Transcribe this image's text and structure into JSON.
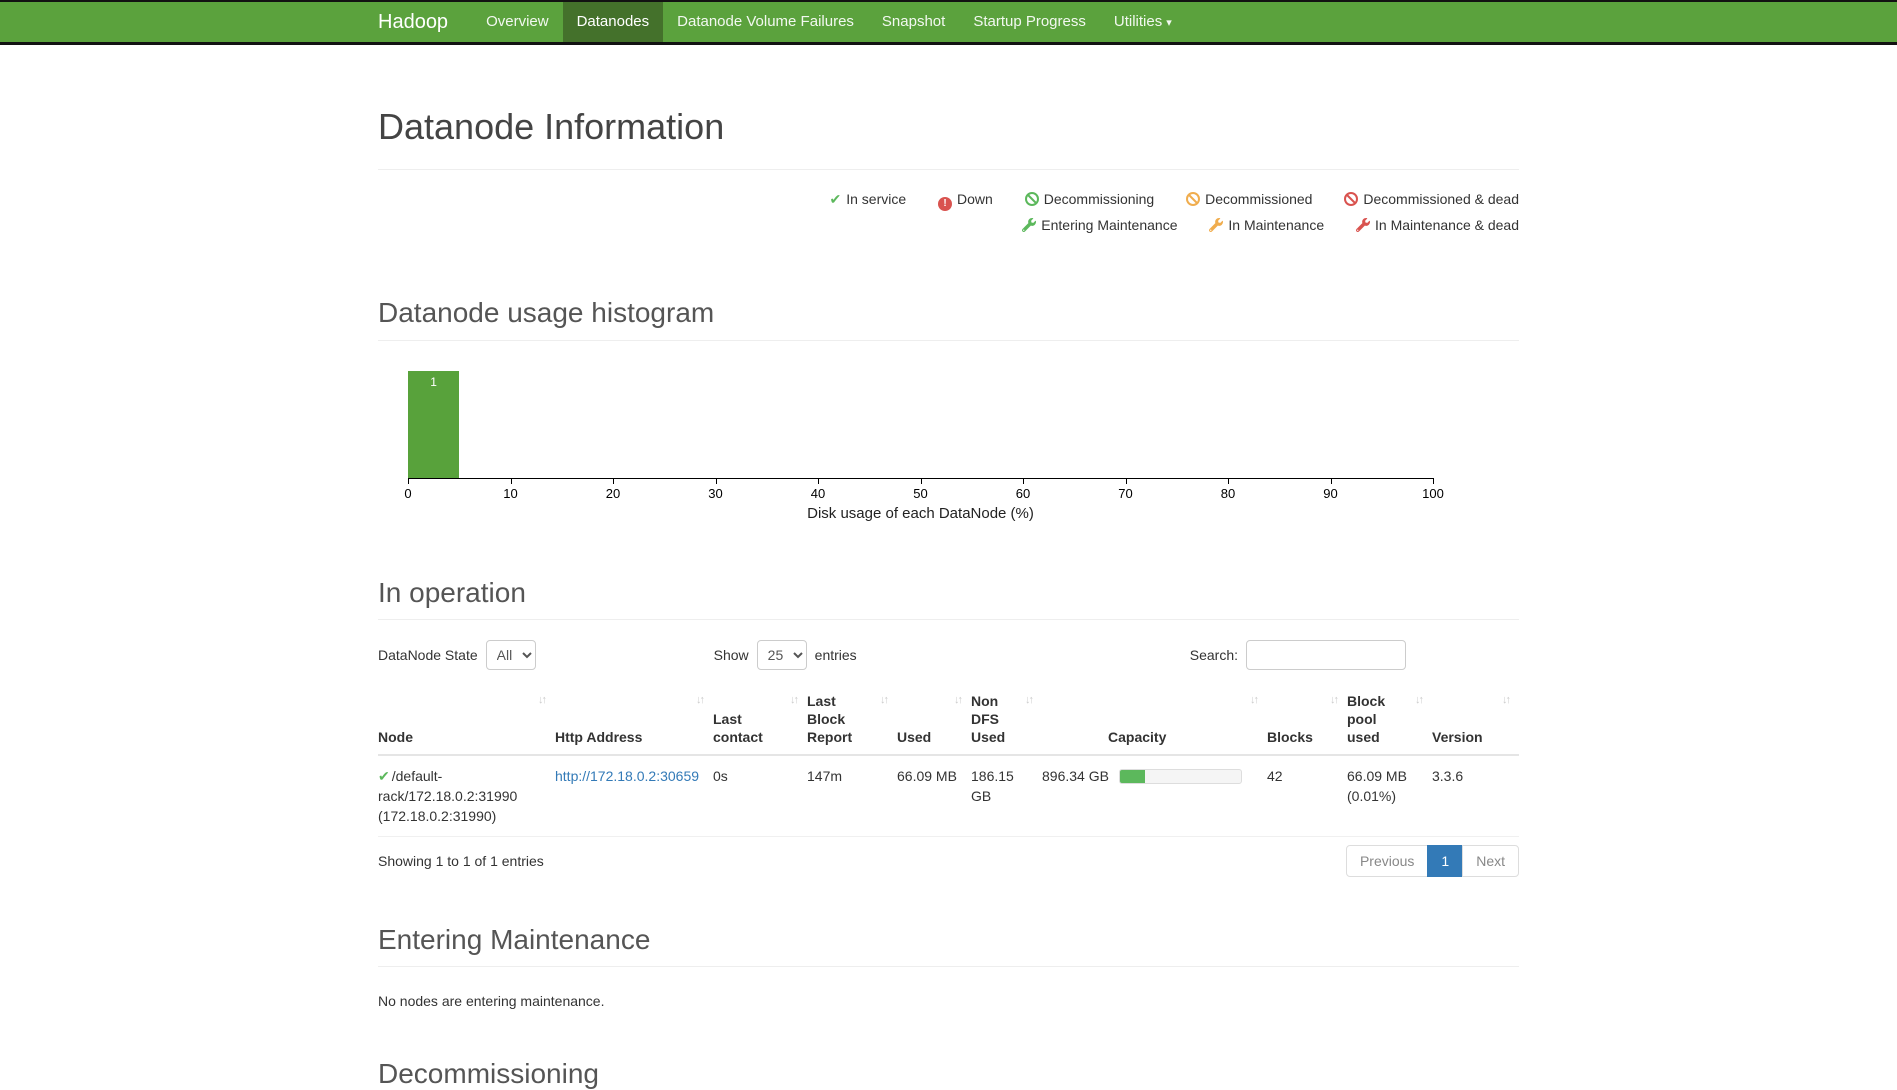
{
  "colors": {
    "navbar_green": "#5ba23d",
    "navbar_active_green": "#44712b",
    "link_blue": "#337ab7",
    "pagination_active": "#337ab7",
    "success_green": "#5cb85c",
    "warning_orange": "#f0ad4e",
    "danger_red": "#d9534f",
    "histogram_bar_green": "#58a23b"
  },
  "navbar": {
    "brand": "Hadoop",
    "items": [
      "Overview",
      "Datanodes",
      "Datanode Volume Failures",
      "Snapshot",
      "Startup Progress",
      "Utilities"
    ]
  },
  "page": {
    "title": "Datanode Information"
  },
  "legend": {
    "row1": [
      {
        "icon": "check-icon",
        "label": "In service"
      },
      {
        "icon": "exclamation-circle-icon",
        "label": "Down"
      },
      {
        "icon": "ban-icon",
        "label": "Decommissioning"
      },
      {
        "icon": "ban-icon",
        "label": "Decommissioned"
      },
      {
        "icon": "ban-icon",
        "label": "Decommissioned & dead"
      }
    ],
    "row2": [
      {
        "icon": "wrench-icon",
        "label": "Entering Maintenance"
      },
      {
        "icon": "wrench-icon",
        "label": "In Maintenance"
      },
      {
        "icon": "wrench-icon",
        "label": "In Maintenance & dead"
      }
    ]
  },
  "histogram": {
    "section_title": "Datanode usage histogram"
  },
  "chart_data": {
    "type": "bar",
    "title": "Datanode usage histogram",
    "xlabel": "Disk usage of each DataNode (%)",
    "ylabel": "",
    "xlim": [
      0,
      100
    ],
    "grid": false,
    "legend_position": "none",
    "x_ticks": [
      "0",
      "10",
      "20",
      "30",
      "40",
      "50",
      "60",
      "70",
      "80",
      "90",
      "100"
    ],
    "bars": [
      {
        "x0": 0,
        "x1": 5,
        "count": 1,
        "width_pct": 5
      }
    ]
  },
  "in_operation": {
    "section_title": "In operation",
    "controls": {
      "state_label": "DataNode State",
      "state_value": "All",
      "show_label": "Show",
      "show_value": "25",
      "entries_label": "entries",
      "search_label": "Search:",
      "search_value": ""
    },
    "table": {
      "columns": [
        "Node",
        "Http Address",
        "Last contact",
        "Last Block Report",
        "Used",
        "Non DFS Used",
        "Capacity",
        "Blocks",
        "Block pool used",
        "Version"
      ],
      "rows": [
        {
          "status": "in-service",
          "node": "/default-rack/172.18.0.2:31990 (172.18.0.2:31990)",
          "http_address": "http://172.18.0.2:30659",
          "last_contact": "0s",
          "last_block_report": "147m",
          "used": "66.09 MB",
          "non_dfs_used": "186.15 GB",
          "capacity": "896.34 GB",
          "capacity_pct": 21,
          "blocks": "42",
          "block_pool_used": "66.09 MB (0.01%)",
          "version": "3.3.6"
        }
      ]
    },
    "footer": {
      "showing": "Showing 1 to 1 of 1 entries",
      "previous": "Previous",
      "page": "1",
      "next": "Next"
    }
  },
  "entering_maintenance": {
    "section_title": "Entering Maintenance",
    "empty_text": "No nodes are entering maintenance."
  },
  "decommissioning": {
    "section_title": "Decommissioning"
  }
}
